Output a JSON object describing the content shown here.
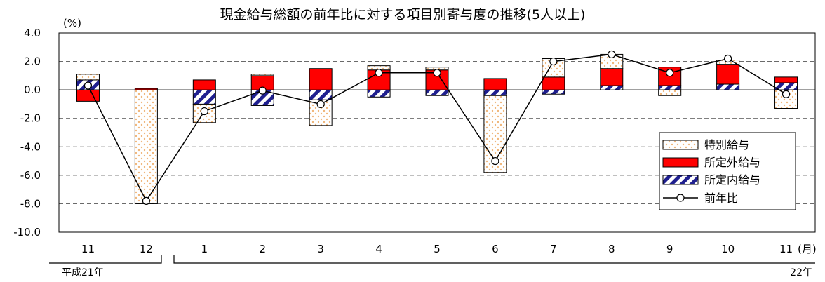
{
  "chart_data": {
    "type": "bar",
    "title": "現金給与総額の前年比に対する項目別寄与度の推移(5人以上)",
    "y_unit": "(%)",
    "x_unit": "(月)",
    "ylim": [
      -10.0,
      4.0
    ],
    "yticks": [
      "4.0",
      "2.0",
      "0.0",
      "-2.0",
      "-4.0",
      "-6.0",
      "-8.0",
      "-10.0"
    ],
    "grid": true,
    "legend_position": "right",
    "categories": [
      "11",
      "12",
      "1",
      "2",
      "3",
      "4",
      "5",
      "6",
      "7",
      "8",
      "9",
      "10",
      "11"
    ],
    "year_labels": [
      "平成21年",
      "22年"
    ],
    "stack_series": [
      {
        "name": "所定内給与",
        "key": "scheduled",
        "pattern": "hatch",
        "values": [
          0.7,
          0.0,
          -1.0,
          -1.1,
          -0.7,
          -0.5,
          -0.4,
          -0.4,
          -0.3,
          0.3,
          0.3,
          0.4,
          0.5
        ]
      },
      {
        "name": "所定外給与",
        "key": "overtime",
        "pattern": "solid",
        "values": [
          -0.8,
          0.1,
          0.7,
          1.0,
          1.5,
          1.4,
          1.4,
          0.8,
          0.9,
          1.2,
          1.3,
          1.4,
          0.4
        ]
      },
      {
        "name": "特別給与",
        "key": "special",
        "pattern": "dots",
        "values": [
          0.4,
          -8.0,
          -1.3,
          0.1,
          -1.8,
          0.3,
          0.2,
          -5.4,
          1.3,
          1.0,
          -0.4,
          0.3,
          -1.3
        ]
      }
    ],
    "line_series": {
      "name": "前年比",
      "values": [
        0.3,
        -7.8,
        -1.5,
        -0.05,
        -1.0,
        1.2,
        1.2,
        -5.0,
        2.0,
        2.5,
        1.2,
        2.2,
        -0.3
      ]
    },
    "colors": {
      "overtime": "#ff0000",
      "scheduled": "#1f1f8f",
      "dots": "#f0b67a",
      "line": "#000000",
      "grid": "#555555"
    }
  }
}
